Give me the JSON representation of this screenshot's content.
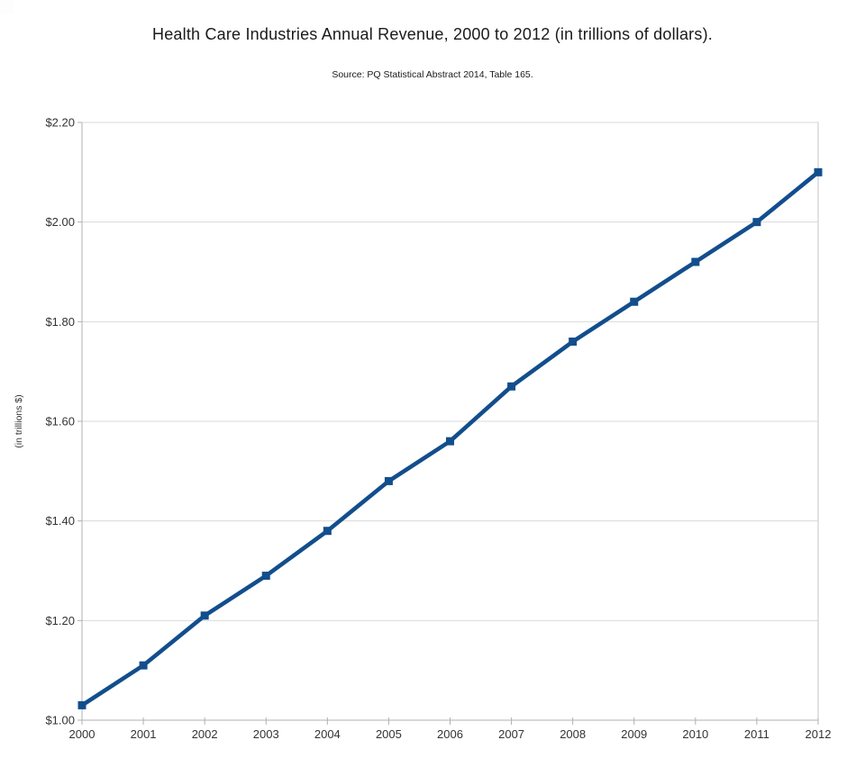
{
  "header": {
    "title": "Health Care Industries Annual Revenue, 2000 to 2012 (in trillions of dollars).",
    "subtitle": "Source: PQ Statistical Abstract 2014, Table 165."
  },
  "chart_data": {
    "type": "line",
    "title": "Health Care Industries Annual Revenue, 2000 to 2012 (in trillions of dollars).",
    "subtitle": "Source: PQ Statistical Abstract 2014, Table 165.",
    "xlabel": "",
    "ylabel": "(in trillions $)",
    "x": [
      2000,
      2001,
      2002,
      2003,
      2004,
      2005,
      2006,
      2007,
      2008,
      2009,
      2010,
      2011,
      2012
    ],
    "xtick_labels": [
      "2000",
      "2001",
      "2002",
      "2003",
      "2004",
      "2005",
      "2006",
      "2007",
      "2008",
      "2009",
      "2010",
      "2011",
      "2012"
    ],
    "series": [
      {
        "name": "Health care industries annual revenue",
        "values": [
          1.03,
          1.11,
          1.21,
          1.29,
          1.38,
          1.48,
          1.56,
          1.67,
          1.76,
          1.84,
          1.92,
          2.0,
          2.1
        ]
      }
    ],
    "ylim": [
      1.0,
      2.2
    ],
    "yticks": [
      1.0,
      1.2,
      1.4,
      1.6,
      1.8,
      2.0,
      2.2
    ],
    "ytick_labels": [
      "$1.00",
      "$1.20",
      "$1.40",
      "$1.60",
      "$1.80",
      "$2.00",
      "$2.20"
    ],
    "grid": true,
    "legend_position": "none",
    "marker": "square",
    "colors": {
      "line": "#124e8c",
      "gridline": "#d9d9d9",
      "axis": "#b0b0b0",
      "right_border": "#c6c6c6",
      "tick_label": "#333333",
      "axis_title": "#333333"
    }
  }
}
